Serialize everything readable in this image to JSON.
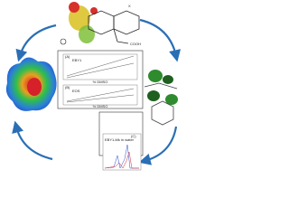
{
  "molecule": {
    "group": "COOH",
    "substituent": "X"
  },
  "panels": [
    {
      "label": "(A)",
      "title": "EBY1",
      "x_label": "% DMSO"
    },
    {
      "label": "(B)",
      "title": "EOS",
      "x_label": "% DMSO"
    },
    {
      "label": "(C)",
      "title": "EBY1-Mk in water"
    }
  ]
}
